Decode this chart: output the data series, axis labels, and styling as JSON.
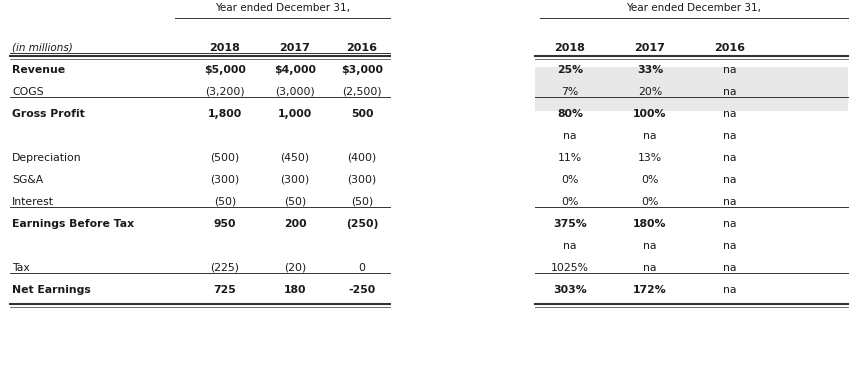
{
  "title_left": "Year ended December 31,",
  "title_right": "Year ended December 31,",
  "header_label": "(in millions)",
  "years": [
    "2018",
    "2017",
    "2016"
  ],
  "rows": [
    {
      "label": "Revenue",
      "bold": true,
      "italic": false,
      "values": [
        "$5,000",
        "$4,000",
        "$3,000"
      ],
      "pct": [
        "25%",
        "33%",
        "na"
      ],
      "blank_above": true,
      "line_below": false,
      "shade": true
    },
    {
      "label": "COGS",
      "bold": false,
      "italic": false,
      "values": [
        "(3,200)",
        "(3,000)",
        "(2,500)"
      ],
      "pct": [
        "7%",
        "20%",
        "na"
      ],
      "blank_above": false,
      "line_below": false,
      "shade": true
    },
    {
      "label": "Gross Profit",
      "bold": true,
      "italic": false,
      "values": [
        "1,800",
        "1,000",
        "500"
      ],
      "pct": [
        "80%",
        "100%",
        "na"
      ],
      "blank_above": false,
      "line_below": false,
      "shade": false
    },
    {
      "label": "",
      "bold": false,
      "italic": false,
      "values": [
        "",
        "",
        ""
      ],
      "pct": [
        "na",
        "na",
        "na"
      ],
      "blank_above": false,
      "line_below": false,
      "shade": false
    },
    {
      "label": "Depreciation",
      "bold": false,
      "italic": false,
      "values": [
        "(500)",
        "(450)",
        "(400)"
      ],
      "pct": [
        "11%",
        "13%",
        "na"
      ],
      "blank_above": false,
      "line_below": false,
      "shade": false
    },
    {
      "label": "SG&A",
      "bold": false,
      "italic": false,
      "values": [
        "(300)",
        "(300)",
        "(300)"
      ],
      "pct": [
        "0%",
        "0%",
        "na"
      ],
      "blank_above": false,
      "line_below": false,
      "shade": false
    },
    {
      "label": "Interest",
      "bold": false,
      "italic": false,
      "values": [
        "(50)",
        "(50)",
        "(50)"
      ],
      "pct": [
        "0%",
        "0%",
        "na"
      ],
      "blank_above": false,
      "line_below": false,
      "shade": false
    },
    {
      "label": "Earnings Before Tax",
      "bold": true,
      "italic": false,
      "values": [
        "950",
        "200",
        "(250)"
      ],
      "pct": [
        "375%",
        "180%",
        "na"
      ],
      "blank_above": false,
      "line_below": false,
      "shade": false
    },
    {
      "label": "",
      "bold": false,
      "italic": false,
      "values": [
        "",
        "",
        ""
      ],
      "pct": [
        "na",
        "na",
        "na"
      ],
      "blank_above": false,
      "line_below": false,
      "shade": false
    },
    {
      "label": "Tax",
      "bold": false,
      "italic": false,
      "values": [
        "(225)",
        "(20)",
        "0"
      ],
      "pct": [
        "1025%",
        "na",
        "na"
      ],
      "blank_above": false,
      "line_below": false,
      "shade": false
    },
    {
      "label": "Net Earnings",
      "bold": true,
      "italic": false,
      "values": [
        "725",
        "180",
        "-250"
      ],
      "pct": [
        "303%",
        "172%",
        "na"
      ],
      "blank_above": false,
      "line_below": false,
      "shade": false
    }
  ],
  "bold_line_rows": [
    0,
    2,
    7,
    10
  ],
  "line_above_rows": [
    0,
    2,
    7,
    10
  ],
  "shade_rows": [
    0,
    1
  ],
  "bg_color": "#ffffff",
  "shade_color": "#e8e8e8",
  "text_color": "#1a1a1a",
  "line_color": "#333333"
}
